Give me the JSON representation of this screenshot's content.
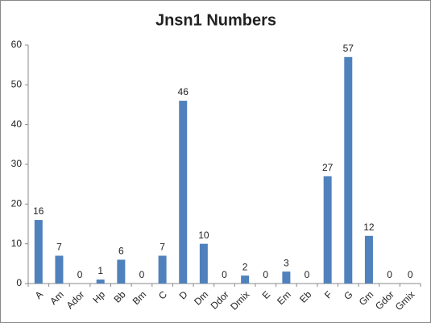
{
  "chart_data": {
    "type": "bar",
    "title": "Jnsn1 Numbers",
    "categories": [
      "A",
      "Am",
      "Ador",
      "Hp",
      "Bb",
      "Bm",
      "C",
      "D",
      "Dm",
      "Ddor",
      "Dmix",
      "E",
      "Em",
      "Eb",
      "F",
      "G",
      "Gm",
      "Gdor",
      "Gmix"
    ],
    "values": [
      16,
      7,
      0,
      1,
      6,
      0,
      7,
      46,
      10,
      0,
      2,
      0,
      3,
      0,
      27,
      57,
      12,
      0,
      0
    ],
    "color": "#4f81bd",
    "ylim": [
      0,
      60
    ],
    "yticks": [
      0,
      10,
      20,
      30,
      40,
      50,
      60
    ],
    "grid": false
  }
}
